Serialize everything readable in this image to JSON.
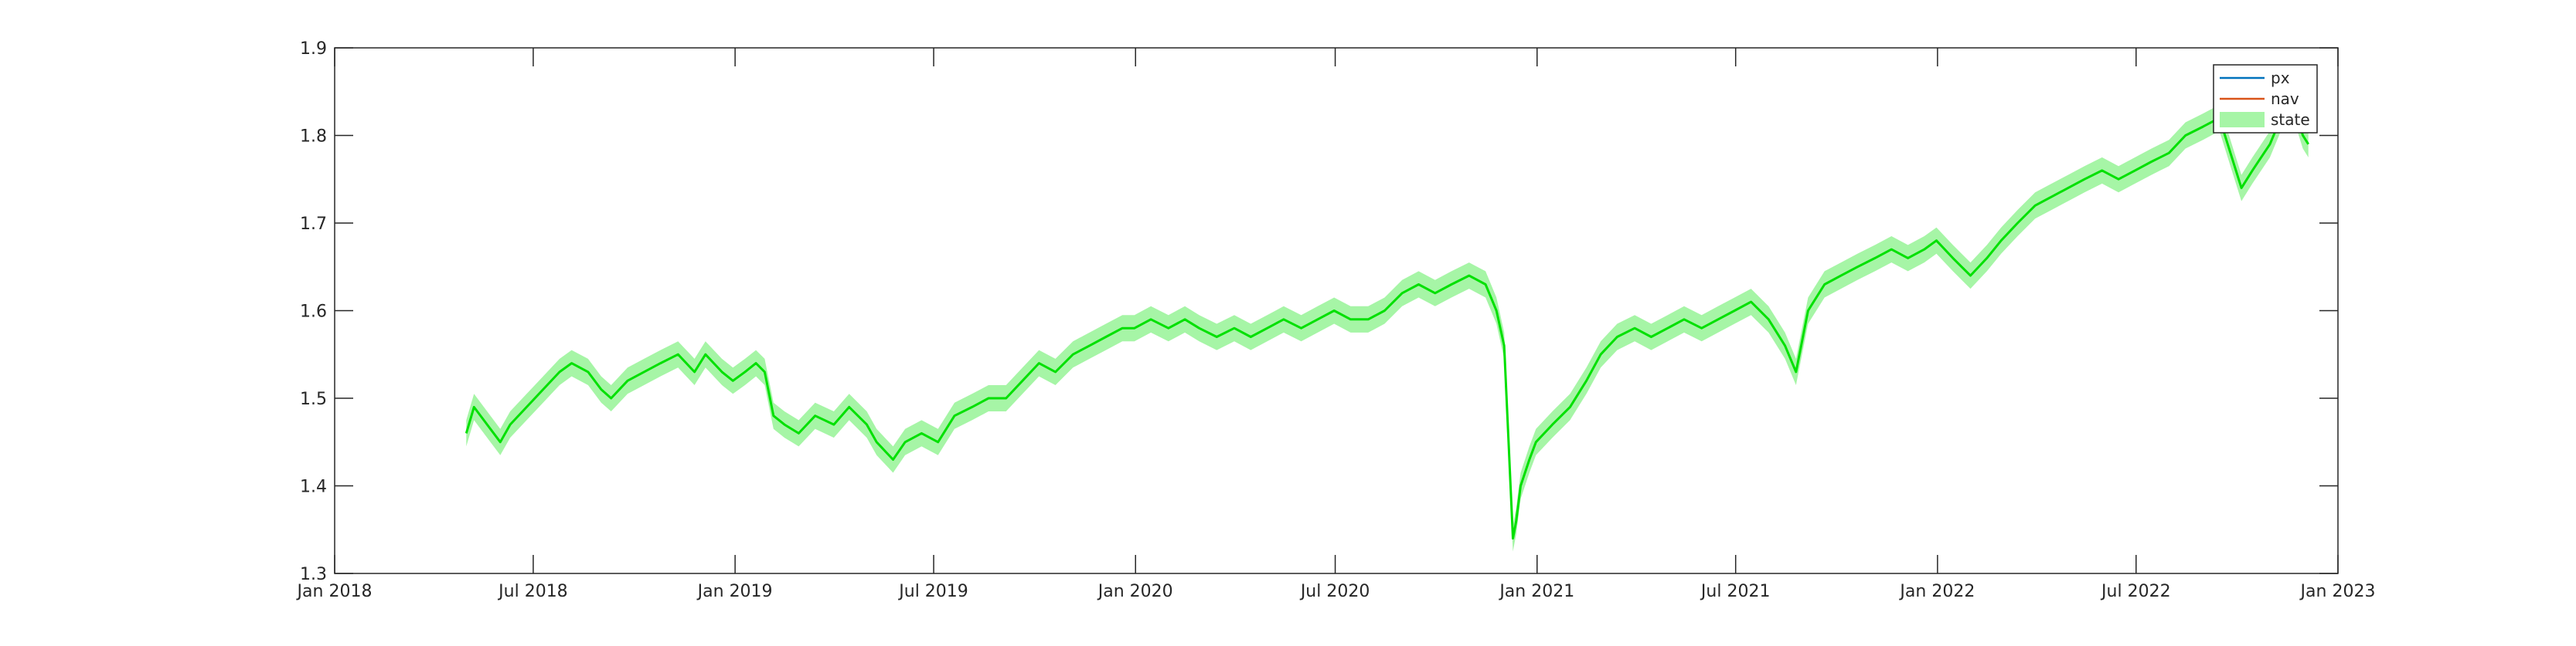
{
  "chart_data": {
    "type": "line",
    "title": "",
    "xlabel": "",
    "ylabel": "",
    "xlim": [
      "2018-01-01",
      "2023-01-01"
    ],
    "ylim": [
      1.3,
      1.9
    ],
    "grid": false,
    "legend_placement": "top-right",
    "x_ticks": [
      "Jan 2018",
      "Jul 2018",
      "Jan 2019",
      "Jul 2019",
      "Jan 2020",
      "Jul 2020",
      "Jan 2021",
      "Jul 2021",
      "Jan 2022",
      "Jul 2022",
      "Jan 2023"
    ],
    "y_ticks": [
      "1.3",
      "1.4",
      "1.5",
      "1.6",
      "1.7",
      "1.8",
      "1.9"
    ],
    "legend": [
      {
        "name": "px",
        "color": "#0072BD"
      },
      {
        "name": "nav",
        "color": "#D95319"
      },
      {
        "name": "state",
        "color": "#A6F5A6"
      }
    ],
    "series": [
      {
        "name": "state",
        "type": "line",
        "color": "#00E000",
        "band_color": "#A6F5A6",
        "band_half_width": 0.015,
        "points": [
          [
            "2018-05-01",
            1.46
          ],
          [
            "2018-05-08",
            1.49
          ],
          [
            "2018-05-20",
            1.47
          ],
          [
            "2018-06-01",
            1.45
          ],
          [
            "2018-06-10",
            1.47
          ],
          [
            "2018-06-25",
            1.49
          ],
          [
            "2018-07-10",
            1.51
          ],
          [
            "2018-07-25",
            1.53
          ],
          [
            "2018-08-05",
            1.54
          ],
          [
            "2018-08-20",
            1.53
          ],
          [
            "2018-09-01",
            1.51
          ],
          [
            "2018-09-10",
            1.5
          ],
          [
            "2018-09-25",
            1.52
          ],
          [
            "2018-10-10",
            1.53
          ],
          [
            "2018-10-25",
            1.54
          ],
          [
            "2018-11-10",
            1.55
          ],
          [
            "2018-11-25",
            1.53
          ],
          [
            "2018-12-05",
            1.55
          ],
          [
            "2018-12-20",
            1.53
          ],
          [
            "2018-12-30",
            1.52
          ],
          [
            "2019-01-10",
            1.53
          ],
          [
            "2019-01-20",
            1.54
          ],
          [
            "2019-01-28",
            1.53
          ],
          [
            "2019-02-05",
            1.48
          ],
          [
            "2019-02-15",
            1.47
          ],
          [
            "2019-02-28",
            1.46
          ],
          [
            "2019-03-15",
            1.48
          ],
          [
            "2019-04-01",
            1.47
          ],
          [
            "2019-04-15",
            1.49
          ],
          [
            "2019-05-01",
            1.47
          ],
          [
            "2019-05-10",
            1.45
          ],
          [
            "2019-05-25",
            1.43
          ],
          [
            "2019-06-05",
            1.45
          ],
          [
            "2019-06-20",
            1.46
          ],
          [
            "2019-07-05",
            1.45
          ],
          [
            "2019-07-20",
            1.48
          ],
          [
            "2019-08-05",
            1.49
          ],
          [
            "2019-08-20",
            1.5
          ],
          [
            "2019-09-05",
            1.5
          ],
          [
            "2019-09-20",
            1.52
          ],
          [
            "2019-10-05",
            1.54
          ],
          [
            "2019-10-20",
            1.53
          ],
          [
            "2019-11-05",
            1.55
          ],
          [
            "2019-11-20",
            1.56
          ],
          [
            "2019-12-05",
            1.57
          ],
          [
            "2019-12-20",
            1.58
          ],
          [
            "2019-12-31",
            1.58
          ],
          [
            "2020-01-15",
            1.59
          ],
          [
            "2020-01-31",
            1.58
          ],
          [
            "2020-02-15",
            1.59
          ],
          [
            "2020-02-28",
            1.58
          ],
          [
            "2020-03-15",
            1.57
          ],
          [
            "2020-03-31",
            1.58
          ],
          [
            "2020-04-15",
            1.57
          ],
          [
            "2020-04-30",
            1.58
          ],
          [
            "2020-05-15",
            1.59
          ],
          [
            "2020-05-31",
            1.58
          ],
          [
            "2020-06-15",
            1.59
          ],
          [
            "2020-06-30",
            1.6
          ],
          [
            "2020-07-15",
            1.59
          ],
          [
            "2020-07-31",
            1.59
          ],
          [
            "2020-08-15",
            1.6
          ],
          [
            "2020-08-31",
            1.62
          ],
          [
            "2020-09-15",
            1.63
          ],
          [
            "2020-09-30",
            1.62
          ],
          [
            "2020-10-15",
            1.63
          ],
          [
            "2020-10-31",
            1.64
          ],
          [
            "2020-11-15",
            1.63
          ],
          [
            "2020-11-25",
            1.6
          ],
          [
            "2020-12-02",
            1.56
          ],
          [
            "2020-12-06",
            1.45
          ],
          [
            "2020-12-10",
            1.34
          ],
          [
            "2020-12-13",
            1.36
          ],
          [
            "2020-12-17",
            1.4
          ],
          [
            "2020-12-25",
            1.43
          ],
          [
            "2020-12-31",
            1.45
          ],
          [
            "2021-01-15",
            1.47
          ],
          [
            "2021-01-31",
            1.49
          ],
          [
            "2021-02-15",
            1.52
          ],
          [
            "2021-02-28",
            1.55
          ],
          [
            "2021-03-15",
            1.57
          ],
          [
            "2021-03-31",
            1.58
          ],
          [
            "2021-04-15",
            1.57
          ],
          [
            "2021-04-30",
            1.58
          ],
          [
            "2021-05-15",
            1.59
          ],
          [
            "2021-05-31",
            1.58
          ],
          [
            "2021-06-15",
            1.59
          ],
          [
            "2021-06-30",
            1.6
          ],
          [
            "2021-07-15",
            1.61
          ],
          [
            "2021-07-31",
            1.59
          ],
          [
            "2021-08-15",
            1.56
          ],
          [
            "2021-08-25",
            1.53
          ],
          [
            "2021-09-05",
            1.6
          ],
          [
            "2021-09-20",
            1.63
          ],
          [
            "2021-10-05",
            1.64
          ],
          [
            "2021-10-20",
            1.65
          ],
          [
            "2021-11-05",
            1.66
          ],
          [
            "2021-11-20",
            1.67
          ],
          [
            "2021-12-05",
            1.66
          ],
          [
            "2021-12-20",
            1.67
          ],
          [
            "2021-12-31",
            1.68
          ],
          [
            "2022-01-15",
            1.66
          ],
          [
            "2022-01-31",
            1.64
          ],
          [
            "2022-02-15",
            1.66
          ],
          [
            "2022-02-28",
            1.68
          ],
          [
            "2022-03-15",
            1.7
          ],
          [
            "2022-03-31",
            1.72
          ],
          [
            "2022-04-15",
            1.73
          ],
          [
            "2022-04-30",
            1.74
          ],
          [
            "2022-05-15",
            1.75
          ],
          [
            "2022-05-31",
            1.76
          ],
          [
            "2022-06-15",
            1.75
          ],
          [
            "2022-06-30",
            1.76
          ],
          [
            "2022-07-15",
            1.77
          ],
          [
            "2022-07-31",
            1.78
          ],
          [
            "2022-08-15",
            1.8
          ],
          [
            "2022-08-31",
            1.81
          ],
          [
            "2022-09-15",
            1.82
          ],
          [
            "2022-09-25",
            1.78
          ],
          [
            "2022-10-05",
            1.74
          ],
          [
            "2022-10-15",
            1.76
          ],
          [
            "2022-10-31",
            1.79
          ],
          [
            "2022-11-10",
            1.82
          ],
          [
            "2022-11-20",
            1.84
          ],
          [
            "2022-11-30",
            1.8
          ],
          [
            "2022-12-05",
            1.79
          ]
        ]
      }
    ]
  }
}
